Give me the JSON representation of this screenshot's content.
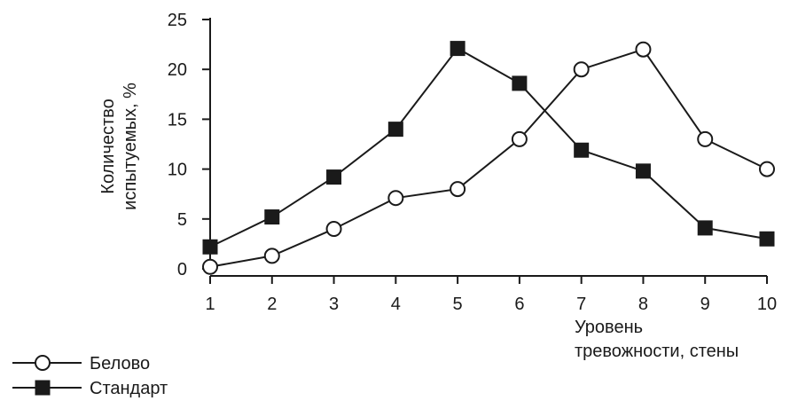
{
  "chart_data": {
    "type": "line",
    "categories": [
      "1",
      "2",
      "3",
      "4",
      "5",
      "6",
      "7",
      "8",
      "9",
      "10"
    ],
    "x": [
      1,
      2,
      3,
      4,
      5,
      6,
      7,
      8,
      9,
      10
    ],
    "series": [
      {
        "name": "Белово",
        "marker": "open-circle",
        "values": [
          0.2,
          1.3,
          4.0,
          7.1,
          8.0,
          13.0,
          20.0,
          22.0,
          13.0,
          10.0
        ]
      },
      {
        "name": "Стандарт",
        "marker": "filled-square",
        "values": [
          2.2,
          5.2,
          9.2,
          14.0,
          22.1,
          18.6,
          11.9,
          9.8,
          4.1,
          3.0
        ]
      }
    ],
    "yticks": [
      "0",
      "5",
      "10",
      "15",
      "20",
      "25"
    ],
    "ylim": [
      0,
      25
    ],
    "xlim": [
      1,
      10
    ],
    "ylabel": [
      "Количество",
      "испытуемых, %"
    ],
    "xlabel": [
      "Уровень",
      "тревожности, стены"
    ],
    "grid": false,
    "legend_position": "bottom-left",
    "colors": {
      "line": "#1a1a1a",
      "open_marker_fill": "#ffffff"
    }
  }
}
